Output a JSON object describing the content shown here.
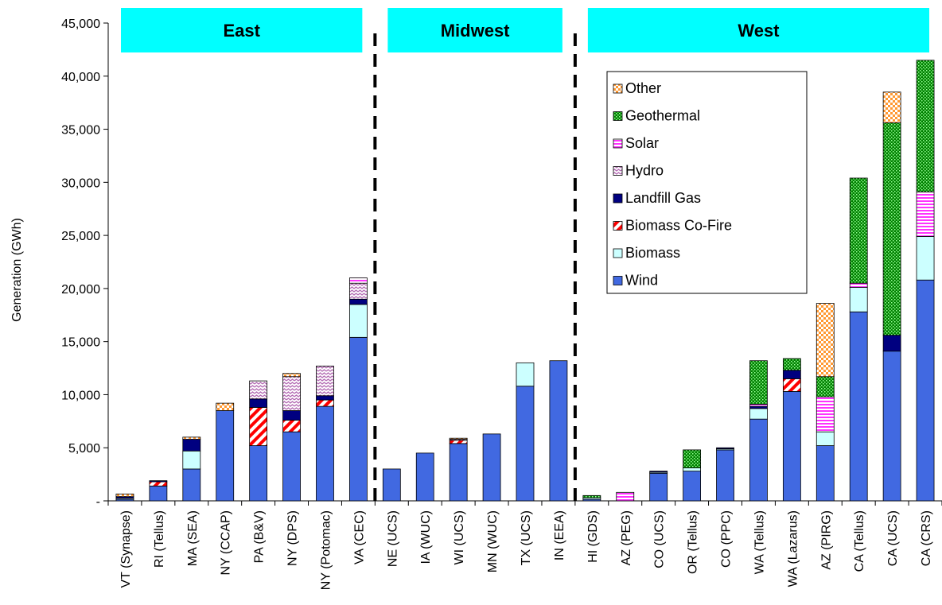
{
  "chart_data": {
    "type": "bar",
    "stacked": true,
    "ylabel": "Generation (GWh)",
    "ylim": [
      0,
      45000
    ],
    "yticks": [
      0,
      5000,
      10000,
      15000,
      20000,
      25000,
      30000,
      35000,
      40000,
      45000
    ],
    "ytick_labels": [
      "-",
      "5,000",
      "10,000",
      "15,000",
      "20,000",
      "25,000",
      "30,000",
      "35,000",
      "40,000",
      "45,000"
    ],
    "categories": [
      "VT (Synapse)",
      "RI (Tellus)",
      "MA (SEA)",
      "NY (CCAP)",
      "PA (B&V)",
      "NY (DPS)",
      "NY (Potomac)",
      "VA (CEC)",
      "NE (UCS)",
      "IA (WUC)",
      "WI (UCS)",
      "MN (WUC)",
      "TX (UCS)",
      "IN (EEA)",
      "HI (GDS)",
      "AZ (PEG)",
      "CO (UCS)",
      "OR (Tellus)",
      "CO (PPC)",
      "WA (Tellus)",
      "WA (Lazarus)",
      "AZ (PIRG)",
      "CA (Tellus)",
      "CA (UCS)",
      "CA (CRS)"
    ],
    "regions": [
      {
        "label": "East",
        "start": 0,
        "end": 7
      },
      {
        "label": "Midwest",
        "start": 8,
        "end": 13
      },
      {
        "label": "West",
        "start": 14,
        "end": 24
      }
    ],
    "legend_position": "top-right",
    "series": [
      {
        "name": "Wind",
        "color": "#4169e1",
        "pattern": "solid",
        "values": [
          150,
          1400,
          3000,
          8500,
          5200,
          6500,
          8900,
          15400,
          3000,
          4500,
          5400,
          6300,
          10800,
          13200,
          150,
          0,
          2600,
          2800,
          4800,
          7700,
          10300,
          5200,
          17800,
          14100,
          20800
        ]
      },
      {
        "name": "Biomass",
        "color": "#ccffff",
        "pattern": "solid",
        "values": [
          100,
          0,
          1700,
          0,
          0,
          0,
          0,
          3100,
          0,
          0,
          0,
          0,
          2200,
          0,
          150,
          0,
          100,
          300,
          100,
          1000,
          0,
          1300,
          2300,
          0,
          4100
        ]
      },
      {
        "name": "Biomass Co-Fire",
        "color": "#ff0000",
        "pattern": "diagonal",
        "values": [
          0,
          400,
          0,
          0,
          3600,
          1100,
          600,
          0,
          0,
          0,
          300,
          0,
          0,
          0,
          0,
          0,
          0,
          0,
          0,
          0,
          1200,
          0,
          0,
          0,
          0
        ]
      },
      {
        "name": "Landfill Gas",
        "color": "#000080",
        "pattern": "solid",
        "values": [
          150,
          100,
          1100,
          0,
          800,
          900,
          400,
          500,
          0,
          0,
          0,
          0,
          0,
          0,
          0,
          0,
          100,
          0,
          100,
          200,
          800,
          0,
          0,
          1500,
          0
        ]
      },
      {
        "name": "Hydro",
        "color": "#cc99cc",
        "pattern": "wave",
        "values": [
          0,
          0,
          0,
          0,
          1700,
          3200,
          2800,
          1500,
          0,
          0,
          100,
          0,
          0,
          0,
          0,
          0,
          0,
          0,
          0,
          0,
          0,
          0,
          0,
          0,
          0
        ]
      },
      {
        "name": "Solar",
        "color": "#ff33ff",
        "pattern": "horizontal",
        "values": [
          0,
          0,
          0,
          0,
          0,
          0,
          0,
          500,
          0,
          0,
          0,
          0,
          0,
          0,
          0,
          800,
          0,
          0,
          0,
          200,
          0,
          3300,
          400,
          0,
          4200
        ]
      },
      {
        "name": "Geothermal",
        "color": "#008000",
        "pattern": "dots",
        "values": [
          0,
          0,
          0,
          0,
          0,
          0,
          0,
          0,
          0,
          0,
          0,
          0,
          0,
          0,
          200,
          0,
          0,
          1700,
          0,
          4100,
          1100,
          1900,
          9900,
          20000,
          12400
        ]
      },
      {
        "name": "Other",
        "color": "#ff9933",
        "pattern": "check",
        "values": [
          250,
          0,
          200,
          700,
          0,
          300,
          0,
          0,
          0,
          0,
          100,
          0,
          0,
          0,
          0,
          0,
          0,
          0,
          0,
          0,
          0,
          6900,
          0,
          2900,
          0
        ]
      }
    ],
    "legend_order": [
      "Other",
      "Geothermal",
      "Solar",
      "Hydro",
      "Landfill Gas",
      "Biomass Co-Fire",
      "Biomass",
      "Wind"
    ]
  }
}
